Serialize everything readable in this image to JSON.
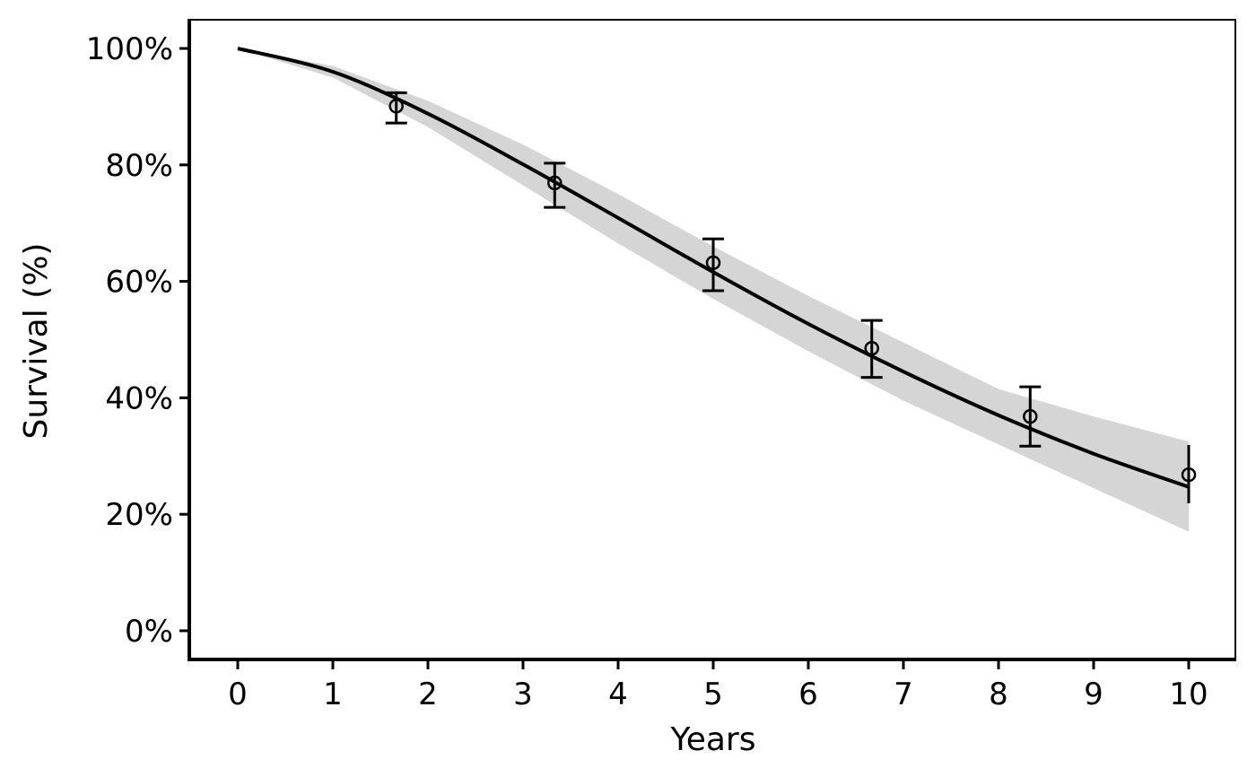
{
  "chart_data": {
    "type": "line",
    "title": "",
    "xlabel": "Years",
    "ylabel": "Survival (%)",
    "xlim": [
      0,
      10
    ],
    "ylim": [
      0,
      100
    ],
    "x_ticks": [
      0,
      1,
      2,
      3,
      4,
      5,
      6,
      7,
      8,
      9,
      10
    ],
    "x_tick_labels": [
      "0",
      "1",
      "2",
      "3",
      "4",
      "5",
      "6",
      "7",
      "8",
      "9",
      "10"
    ],
    "y_ticks": [
      0,
      20,
      40,
      60,
      80,
      100
    ],
    "y_tick_labels": [
      "0%",
      "20%",
      "40%",
      "60%",
      "80%",
      "100%"
    ],
    "grid": false,
    "colors": {
      "line": "#000000",
      "band": "#d5d5d5",
      "points": "#000000"
    },
    "fitted_curve": {
      "x": [
        0,
        1,
        2,
        3,
        4,
        5,
        6,
        7,
        8,
        9,
        10
      ],
      "y": [
        100,
        96.0,
        88.8,
        80.1,
        70.9,
        61.6,
        52.7,
        44.5,
        37.0,
        30.4,
        24.7
      ]
    },
    "confidence_band": {
      "x": [
        0,
        1,
        2,
        3,
        4,
        5,
        6,
        7,
        8,
        9,
        10
      ],
      "lower": [
        100,
        95.0,
        86.5,
        76.5,
        66.5,
        57.0,
        48.0,
        39.5,
        32.0,
        24.5,
        17.0
      ],
      "upper": [
        100,
        97.0,
        91.0,
        83.5,
        75.0,
        66.0,
        57.5,
        49.5,
        41.5,
        36.8,
        32.5
      ]
    },
    "observed_points": [
      {
        "x": 1.667,
        "y": 90.1,
        "lower": 87.2,
        "upper": 92.4
      },
      {
        "x": 3.333,
        "y": 76.9,
        "lower": 72.7,
        "upper": 80.3
      },
      {
        "x": 5.0,
        "y": 63.2,
        "lower": 58.4,
        "upper": 67.3
      },
      {
        "x": 6.667,
        "y": 48.5,
        "lower": 43.5,
        "upper": 53.3
      },
      {
        "x": 8.333,
        "y": 36.8,
        "lower": 31.7,
        "upper": 41.9
      },
      {
        "x": 10.0,
        "y": 26.8,
        "lower": 21.9,
        "upper": 31.9
      }
    ]
  }
}
